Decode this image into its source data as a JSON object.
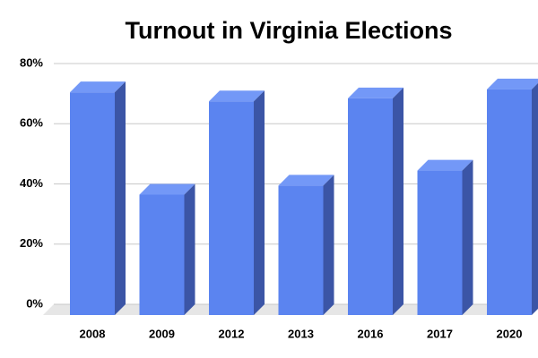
{
  "chart_data": {
    "type": "bar3d",
    "title": "Turnout in Virginia Elections",
    "categories": [
      "2008",
      "2009",
      "2012",
      "2013",
      "2016",
      "2017",
      "2020"
    ],
    "values": [
      74,
      40,
      71,
      43,
      72,
      48,
      75
    ],
    "color": "#5b84f0",
    "ylim": [
      0,
      80
    ],
    "yticks": [
      {
        "value": 0,
        "label": "0%"
      },
      {
        "value": 20,
        "label": "20%"
      },
      {
        "value": 40,
        "label": "40%"
      },
      {
        "value": 60,
        "label": "60%"
      },
      {
        "value": 80,
        "label": "80%"
      }
    ],
    "grid": true
  }
}
